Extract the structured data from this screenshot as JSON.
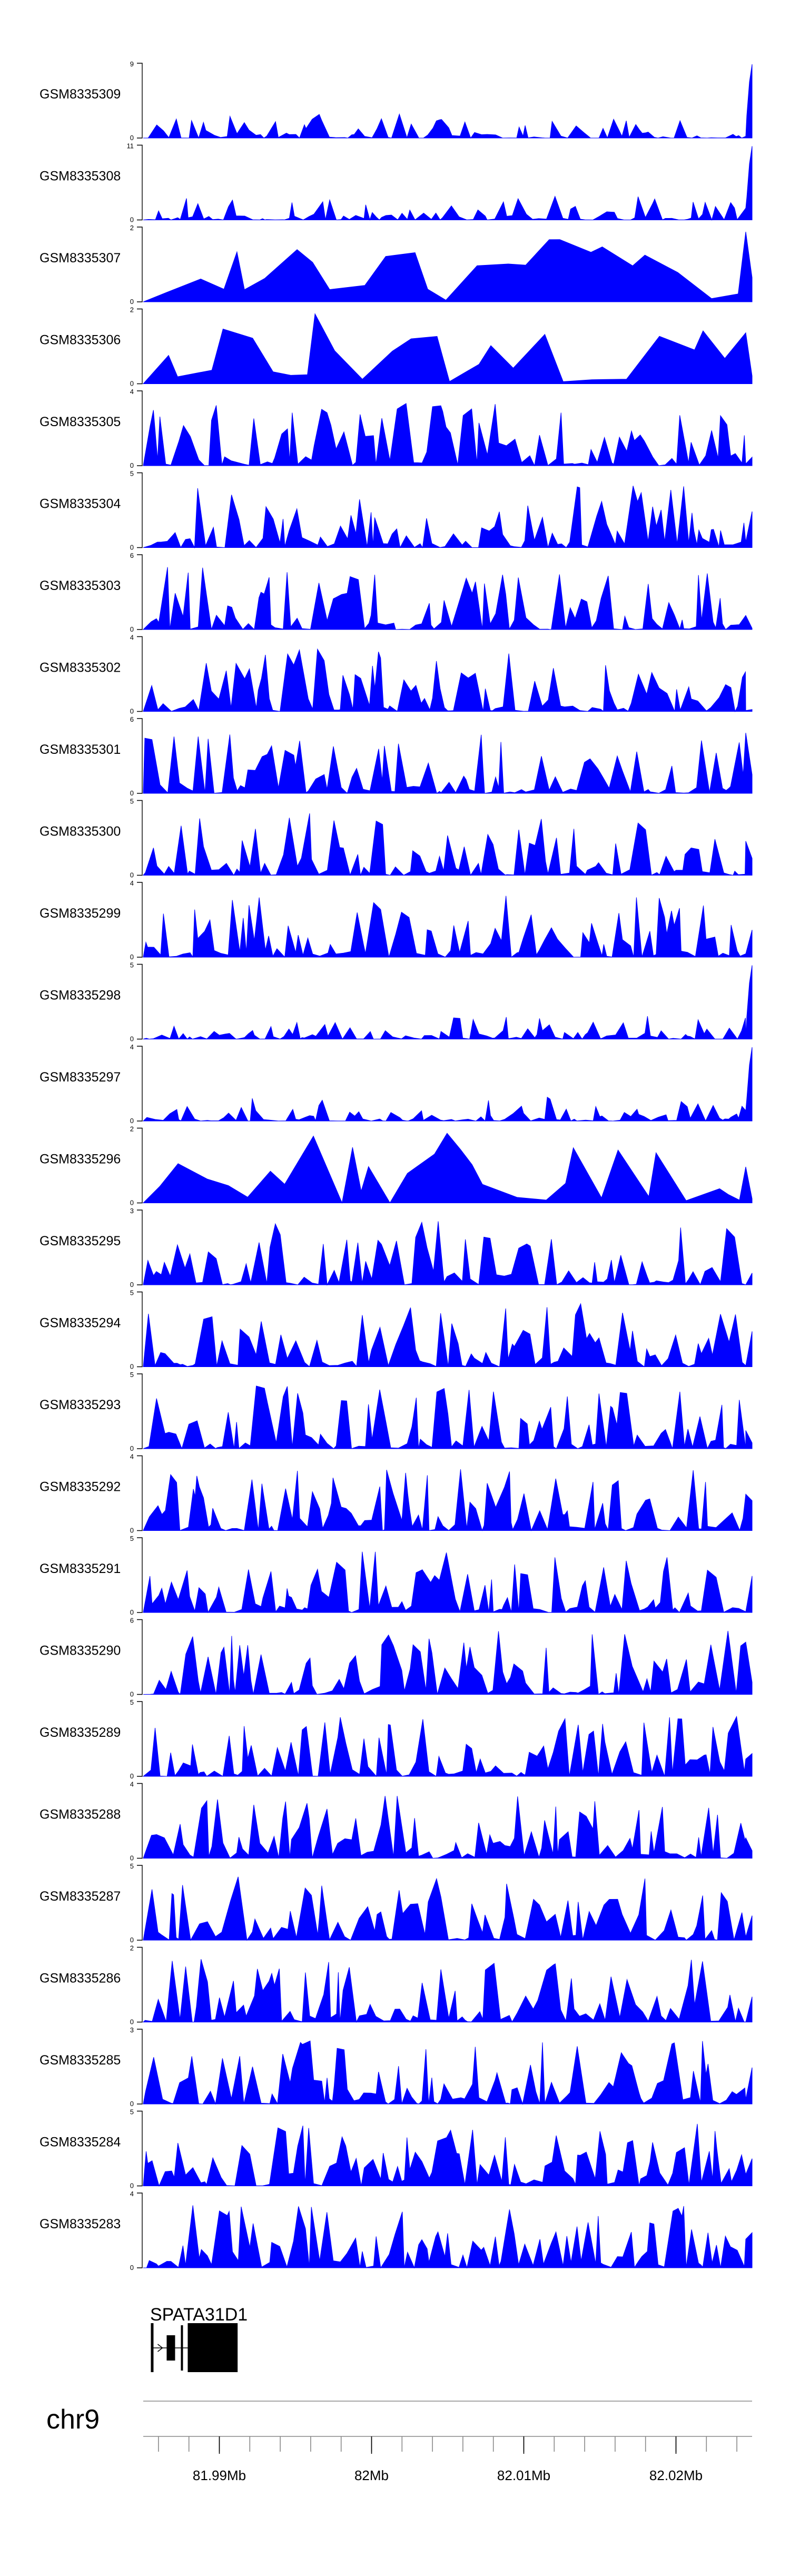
{
  "chart_data": {
    "type": "area",
    "region": {
      "xlim": [
        81.985,
        82.025
      ]
    },
    "tracks": [
      {
        "name": "GSM8335309",
        "ymax": "9"
      },
      {
        "name": "GSM8335308",
        "ymax": "11"
      },
      {
        "name": "GSM8335307",
        "ymax": "2"
      },
      {
        "name": "GSM8335306",
        "ymax": "2"
      },
      {
        "name": "GSM8335305",
        "ymax": "4"
      },
      {
        "name": "GSM8335304",
        "ymax": "5"
      },
      {
        "name": "GSM8335303",
        "ymax": "6"
      },
      {
        "name": "GSM8335302",
        "ymax": "4"
      },
      {
        "name": "GSM8335301",
        "ymax": "6"
      },
      {
        "name": "GSM8335300",
        "ymax": "5"
      },
      {
        "name": "GSM8335299",
        "ymax": "4"
      },
      {
        "name": "GSM8335298",
        "ymax": "5"
      },
      {
        "name": "GSM8335297",
        "ymax": "4"
      },
      {
        "name": "GSM8335296",
        "ymax": "2"
      },
      {
        "name": "GSM8335295",
        "ymax": "3"
      },
      {
        "name": "GSM8335294",
        "ymax": "5"
      },
      {
        "name": "GSM8335293",
        "ymax": "5"
      },
      {
        "name": "GSM8335292",
        "ymax": "4"
      },
      {
        "name": "GSM8335291",
        "ymax": "5"
      },
      {
        "name": "GSM8335290",
        "ymax": "6"
      },
      {
        "name": "GSM8335289",
        "ymax": "5"
      },
      {
        "name": "GSM8335288",
        "ymax": "4"
      },
      {
        "name": "GSM8335287",
        "ymax": "5"
      },
      {
        "name": "GSM8335286",
        "ymax": "2"
      },
      {
        "name": "GSM8335285",
        "ymax": "3"
      },
      {
        "name": "GSM8335284",
        "ymax": "5"
      },
      {
        "name": "GSM8335283",
        "ymax": "4"
      }
    ],
    "ymin_label": "0",
    "gene": {
      "name": "SPATA31D1",
      "start": 81.9855,
      "end": 81.9912
    },
    "chromosome": "chr9",
    "x_ticks": [
      {
        "value": 81.99,
        "label": "81.99Mb"
      },
      {
        "value": 82.0,
        "label": "82Mb"
      },
      {
        "value": 82.01,
        "label": "82.01Mb"
      },
      {
        "value": 82.02,
        "label": "82.02Mb"
      }
    ],
    "minor_tick_step": 0.002,
    "fill_color": "#0000ff"
  }
}
